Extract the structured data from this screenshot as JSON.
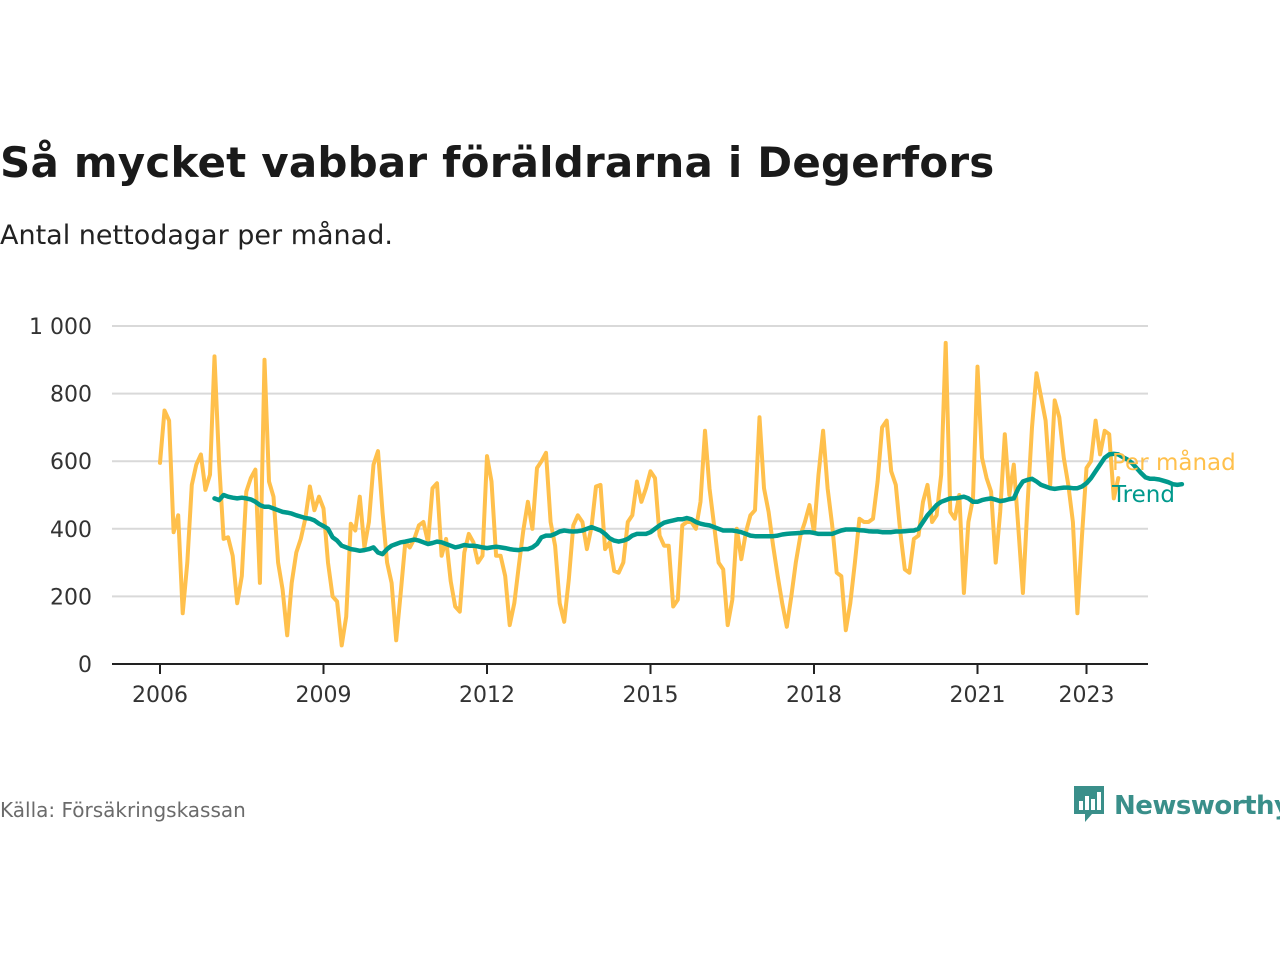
{
  "header": {
    "title": "Så mycket vabbar föräldrarna i Degerfors",
    "subtitle": "Antal nettodagar per månad."
  },
  "footer": {
    "source": "Källa: Försäkringskassan",
    "brand": "Newsworthy",
    "brand_icon": "bar-chart-speech-bubble-icon"
  },
  "colors": {
    "monthly": "#FFC04C",
    "trend": "#00998C",
    "grid": "#d9d9d9",
    "axis": "#222222",
    "brand": "#3a8f8a"
  },
  "chart_data": {
    "type": "line",
    "title": "Så mycket vabbar föräldrarna i Degerfors",
    "subtitle": "Antal nettodagar per månad.",
    "xlabel": "",
    "ylabel": "",
    "ylim": [
      0,
      1000
    ],
    "xlim": [
      "2006-01",
      "2024-01"
    ],
    "yticks": [
      0,
      200,
      400,
      600,
      800,
      1000
    ],
    "ytick_labels": [
      "0",
      "200",
      "400",
      "600",
      "800",
      "1 000"
    ],
    "xticks": [
      "2006",
      "2009",
      "2012",
      "2015",
      "2018",
      "2021",
      "2023"
    ],
    "grid": "horizontal",
    "legend": "direct labels at right end of lines",
    "series": [
      {
        "name": "Per månad",
        "color": "#FFC04C",
        "x_start": "2006-01",
        "frequency": "monthly",
        "values": [
          595,
          750,
          720,
          390,
          440,
          150,
          300,
          530,
          590,
          620,
          515,
          560,
          910,
          600,
          370,
          375,
          320,
          180,
          260,
          510,
          550,
          575,
          240,
          900,
          540,
          495,
          300,
          220,
          85,
          240,
          330,
          370,
          430,
          525,
          455,
          495,
          460,
          300,
          200,
          185,
          55,
          140,
          415,
          395,
          495,
          345,
          420,
          590,
          630,
          450,
          300,
          240,
          70,
          210,
          360,
          345,
          370,
          410,
          420,
          360,
          520,
          535,
          320,
          370,
          245,
          170,
          155,
          330,
          385,
          360,
          300,
          320,
          615,
          540,
          320,
          320,
          260,
          115,
          180,
          290,
          395,
          480,
          400,
          580,
          600,
          625,
          420,
          350,
          180,
          125,
          250,
          410,
          440,
          420,
          340,
          405,
          525,
          530,
          340,
          360,
          275,
          270,
          300,
          420,
          440,
          540,
          480,
          520,
          570,
          550,
          380,
          350,
          350,
          170,
          190,
          410,
          420,
          420,
          400,
          480,
          690,
          520,
          410,
          300,
          280,
          115,
          190,
          400,
          310,
          390,
          440,
          455,
          730,
          520,
          450,
          350,
          260,
          180,
          110,
          200,
          300,
          380,
          420,
          470,
          390,
          560,
          690,
          520,
          410,
          270,
          260,
          100,
          180,
          300,
          430,
          420,
          420,
          430,
          540,
          700,
          720,
          570,
          530,
          390,
          280,
          270,
          370,
          380,
          480,
          530,
          420,
          440,
          560,
          950,
          450,
          430,
          500,
          210,
          420,
          490,
          880,
          610,
          550,
          510,
          300,
          450,
          680,
          500,
          590,
          400,
          210,
          470,
          700,
          860,
          790,
          720,
          530,
          780,
          730,
          610,
          530,
          420,
          150,
          380,
          580,
          600,
          720,
          620,
          690,
          680,
          490,
          550
        ]
      },
      {
        "name": "Trend",
        "color": "#00998C",
        "x_start": "2007-01",
        "frequency": "monthly",
        "values": [
          490,
          485,
          500,
          495,
          492,
          490,
          492,
          490,
          487,
          480,
          470,
          465,
          465,
          460,
          455,
          450,
          448,
          445,
          440,
          436,
          432,
          430,
          425,
          415,
          408,
          400,
          375,
          365,
          350,
          345,
          340,
          338,
          335,
          337,
          340,
          345,
          330,
          325,
          340,
          350,
          355,
          360,
          362,
          365,
          368,
          365,
          360,
          355,
          358,
          362,
          360,
          355,
          350,
          345,
          348,
          352,
          350,
          350,
          348,
          345,
          343,
          345,
          347,
          345,
          343,
          340,
          338,
          337,
          340,
          340,
          345,
          355,
          375,
          380,
          380,
          385,
          392,
          395,
          393,
          392,
          393,
          395,
          400,
          405,
          400,
          395,
          385,
          372,
          365,
          362,
          365,
          370,
          380,
          385,
          385,
          385,
          390,
          400,
          410,
          418,
          422,
          425,
          428,
          428,
          432,
          428,
          420,
          415,
          412,
          410,
          405,
          400,
          395,
          395,
          395,
          393,
          390,
          385,
          380,
          378,
          378,
          378,
          378,
          378,
          380,
          383,
          385,
          386,
          387,
          388,
          390,
          390,
          388,
          385,
          385,
          385,
          385,
          390,
          395,
          398,
          398,
          398,
          396,
          395,
          393,
          392,
          392,
          390,
          390,
          390,
          392,
          392,
          393,
          394,
          395,
          400,
          420,
          440,
          455,
          470,
          480,
          485,
          490,
          490,
          492,
          495,
          490,
          480,
          480,
          485,
          488,
          490,
          486,
          482,
          484,
          488,
          490,
          520,
          540,
          545,
          548,
          540,
          530,
          525,
          520,
          518,
          520,
          522,
          522,
          520,
          520,
          525,
          535,
          550,
          570,
          590,
          610,
          620,
          622,
          620,
          612,
          605,
          595,
          580,
          565,
          552,
          548,
          548,
          546,
          542,
          538,
          532,
          530,
          532
        ]
      }
    ]
  }
}
